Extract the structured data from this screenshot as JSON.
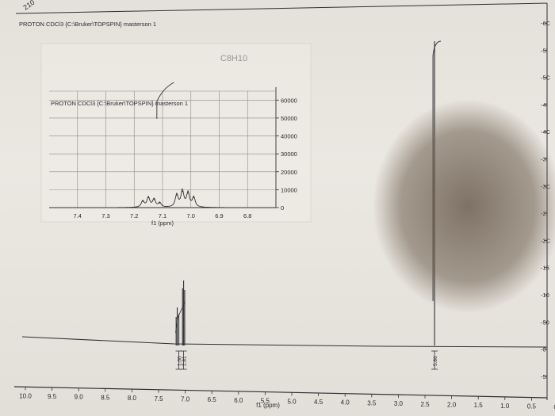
{
  "corner_page_number": "210",
  "chart_data": [
    {
      "type": "line",
      "title": "C8H10",
      "subtitle": "PROTON CDCl3 {C:\\Bruker\\TOPSPIN} masterson 1",
      "xlabel": "f1 (ppm)",
      "x_reversed": true,
      "xlim": [
        10.0,
        0.0
      ],
      "x_ticks": [
        "10.0",
        "9.5",
        "9.0",
        "8.5",
        "8.0",
        "7.5",
        "7.0",
        "6.5",
        "6.0",
        "5.5",
        "5.0",
        "4.5",
        "4.0",
        "3.5",
        "3.0",
        "2.5",
        "2.0",
        "1.5",
        "1.0",
        "0.5",
        "0.0"
      ],
      "y_ticks_right": [
        "-6C",
        "-5!",
        "-5C",
        "-4!",
        "-4C",
        "-3!",
        "-3C",
        "-2!",
        "-2C",
        "-15",
        "-10",
        "-50",
        "-0",
        "-5I"
      ],
      "peaks": [
        {
          "ppm": 7.17,
          "height": 0.36
        },
        {
          "ppm": 7.15,
          "height": 0.48
        },
        {
          "ppm": 7.12,
          "height": 0.4
        },
        {
          "ppm": 7.05,
          "height": 0.72
        },
        {
          "ppm": 7.03,
          "height": 0.82
        },
        {
          "ppm": 7.01,
          "height": 0.7
        },
        {
          "ppm": 2.32,
          "height": 4.5
        }
      ],
      "integrals": [
        {
          "ppm": 7.12,
          "label": "1.00"
        },
        {
          "ppm": 7.03,
          "label": "2.81"
        },
        {
          "ppm": 2.32,
          "label": "5.86"
        }
      ],
      "grid": false
    },
    {
      "type": "line",
      "title": "PROTON CDCl3 {C:\\Bruker\\TOPSPIN} masterson 1",
      "xlabel": "f1 (ppm)",
      "x_reversed": true,
      "xlim": [
        7.5,
        6.7
      ],
      "x_ticks": [
        "7.4",
        "7.3",
        "7.2",
        "7.1",
        "7.0",
        "6.9",
        "6.8"
      ],
      "ylim": [
        0,
        65000
      ],
      "y_ticks": [
        "60000",
        "50000",
        "40000",
        "30000",
        "20000",
        "10000",
        "0"
      ],
      "peaks": [
        {
          "ppm": 7.17,
          "intensity": 3500
        },
        {
          "ppm": 7.15,
          "intensity": 5500
        },
        {
          "ppm": 7.13,
          "intensity": 4500
        },
        {
          "ppm": 7.11,
          "intensity": 2500
        },
        {
          "ppm": 7.05,
          "intensity": 7000
        },
        {
          "ppm": 7.03,
          "intensity": 9000
        },
        {
          "ppm": 7.01,
          "intensity": 8000
        },
        {
          "ppm": 6.99,
          "intensity": 5500
        }
      ],
      "grid": true
    }
  ]
}
